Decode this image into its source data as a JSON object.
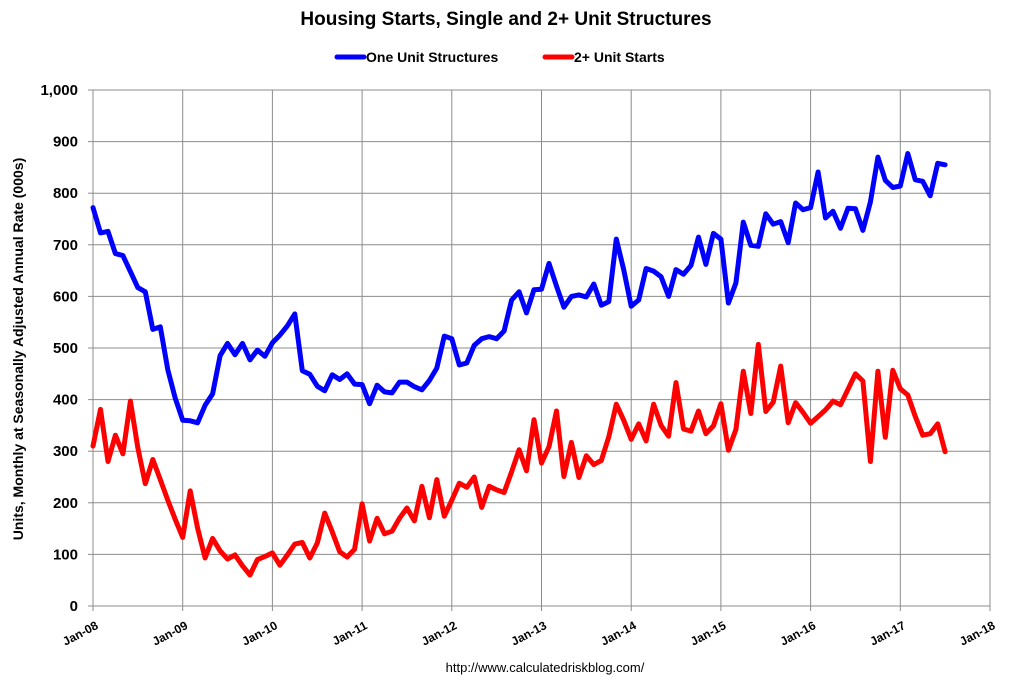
{
  "chart_data": {
    "type": "line",
    "title": "Housing Starts, Single and 2+ Unit Structures",
    "ylabel": "Units, Monthly at Seasonally Adjusted Annual Rate (000s)",
    "xlabel": "",
    "source": "http://www.calculatedriskblog.com/",
    "ylim": [
      0,
      1000
    ],
    "yticks": [
      "0",
      "100",
      "200",
      "300",
      "400",
      "500",
      "600",
      "700",
      "800",
      "900",
      "1,000"
    ],
    "xticks": [
      "Jan-08",
      "Jan-09",
      "Jan-10",
      "Jan-11",
      "Jan-12",
      "Jan-13",
      "Jan-14",
      "Jan-15",
      "Jan-16",
      "Jan-17",
      "Jan-18"
    ],
    "x_start": "Jan-08",
    "x_end": "Jan-18",
    "grid": true,
    "legend_position": "top",
    "series": [
      {
        "name": "One Unit Structures",
        "color": "#0000ff",
        "values": [
          772,
          723,
          726,
          683,
          679,
          648,
          617,
          609,
          536,
          541,
          458,
          403,
          360,
          359,
          355,
          389,
          411,
          485,
          509,
          487,
          509,
          477,
          496,
          484,
          510,
          525,
          543,
          566,
          456,
          449,
          426,
          417,
          448,
          439,
          450,
          430,
          429,
          392,
          428,
          415,
          413,
          434,
          434,
          425,
          419,
          437,
          461,
          523,
          518,
          467,
          471,
          505,
          518,
          522,
          518,
          533,
          593,
          609,
          568,
          613,
          614,
          664,
          620,
          579,
          600,
          603,
          599,
          624,
          583,
          590,
          711,
          652,
          581,
          593,
          654,
          649,
          638,
          600,
          652,
          643,
          660,
          715,
          662,
          722,
          711,
          587,
          626,
          744,
          699,
          697,
          760,
          740,
          745,
          704,
          781,
          768,
          772,
          841,
          752,
          765,
          732,
          771,
          770,
          728,
          783,
          870,
          825,
          811,
          814,
          877,
          826,
          823,
          795,
          858,
          855
        ]
      },
      {
        "name": "2+ Unit Starts",
        "color": "#ff0000",
        "values": [
          310,
          381,
          280,
          331,
          295,
          397,
          307,
          237,
          284,
          245,
          205,
          168,
          133,
          223,
          151,
          93,
          131,
          107,
          91,
          99,
          78,
          60,
          90,
          96,
          103,
          79,
          99,
          120,
          123,
          93,
          122,
          180,
          144,
          105,
          95,
          110,
          198,
          126,
          170,
          140,
          145,
          170,
          190,
          165,
          232,
          171,
          245,
          174,
          205,
          238,
          230,
          250,
          191,
          232,
          225,
          220,
          260,
          303,
          262,
          361,
          277,
          309,
          378,
          251,
          317,
          249,
          291,
          274,
          282,
          328,
          391,
          360,
          323,
          353,
          320,
          391,
          350,
          329,
          433,
          343,
          339,
          378,
          334,
          349,
          392,
          302,
          342,
          455,
          373,
          507,
          377,
          395,
          465,
          355,
          394,
          375,
          354,
          367,
          380,
          397,
          390,
          420,
          450,
          436,
          280,
          455,
          327,
          457,
          421,
          409,
          367,
          331,
          334,
          353,
          299
        ]
      }
    ]
  }
}
